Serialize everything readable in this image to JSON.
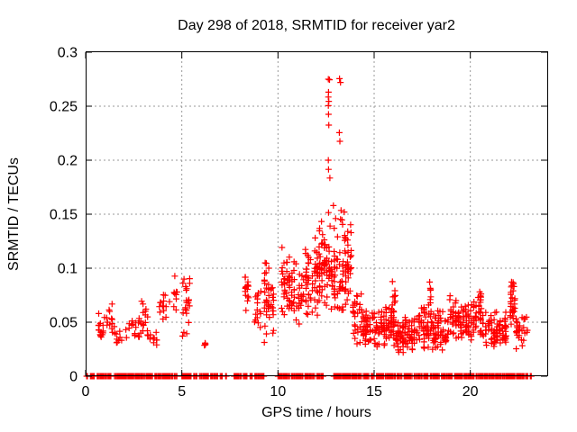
{
  "chart_data": {
    "type": "scatter",
    "title": "Day 298 of 2018, SRMTID for receiver yar2",
    "xlabel": "GPS time / hours",
    "ylabel": "SRMTID / TECUs",
    "xlim": [
      0,
      24
    ],
    "ylim": [
      0,
      0.3
    ],
    "grid": true,
    "legend": "none",
    "marker": "plus",
    "marker_color": "#ff0000",
    "marker_size": 7,
    "grid_color": "#9a9a9a",
    "axis_color": "#000000",
    "background_color": "#ffffff",
    "xticks": [
      {
        "v": 0,
        "label": "0"
      },
      {
        "v": 5,
        "label": "5"
      },
      {
        "v": 10,
        "label": "10"
      },
      {
        "v": 15,
        "label": "15"
      },
      {
        "v": 20,
        "label": "20"
      }
    ],
    "yticks": [
      {
        "v": 0,
        "label": "0"
      },
      {
        "v": 0.05,
        "label": "0.05"
      },
      {
        "v": 0.1,
        "label": "0.1"
      },
      {
        "v": 0.15,
        "label": "0.15"
      },
      {
        "v": 0.2,
        "label": "0.2"
      },
      {
        "v": 0.25,
        "label": "0.25"
      },
      {
        "v": 0.3,
        "label": "0.3"
      }
    ],
    "cluster_format": [
      "x_start_h",
      "x_end_h",
      "y_min_TECU",
      "y_max_TECU",
      "n_points",
      "n_columns"
    ],
    "clusters": [
      [
        0.62,
        1.05,
        0.03,
        0.062,
        16,
        4
      ],
      [
        1.05,
        1.55,
        0.032,
        0.072,
        14,
        4
      ],
      [
        1.55,
        1.95,
        0.028,
        0.048,
        8,
        3
      ],
      [
        2.05,
        2.65,
        0.03,
        0.056,
        12,
        4
      ],
      [
        2.7,
        3.3,
        0.03,
        0.078,
        22,
        5
      ],
      [
        3.3,
        3.75,
        0.017,
        0.048,
        10,
        3
      ],
      [
        3.8,
        4.4,
        0.042,
        0.088,
        14,
        4
      ],
      [
        4.55,
        4.9,
        0.052,
        0.096,
        9,
        3
      ],
      [
        5.0,
        5.45,
        0.026,
        0.105,
        22,
        3
      ],
      [
        6.15,
        6.35,
        0.024,
        0.034,
        4,
        2
      ],
      [
        8.25,
        8.5,
        0.052,
        0.112,
        16,
        2
      ],
      [
        8.75,
        9.15,
        0.04,
        0.08,
        15,
        3
      ],
      [
        9.25,
        9.8,
        0.03,
        0.108,
        42,
        5
      ],
      [
        10.15,
        10.65,
        0.045,
        0.128,
        40,
        4
      ],
      [
        10.65,
        11.4,
        0.038,
        0.112,
        38,
        6
      ],
      [
        11.4,
        12.1,
        0.048,
        0.135,
        55,
        6
      ],
      [
        12.1,
        13.0,
        0.055,
        0.148,
        85,
        7
      ],
      [
        13.0,
        13.85,
        0.048,
        0.15,
        65,
        6
      ],
      [
        13.85,
        14.4,
        0.028,
        0.082,
        30,
        5
      ],
      [
        14.4,
        15.2,
        0.024,
        0.062,
        55,
        7
      ],
      [
        15.2,
        16.2,
        0.022,
        0.068,
        70,
        8
      ],
      [
        15.9,
        16.15,
        0.06,
        0.088,
        8,
        2
      ],
      [
        16.2,
        17.4,
        0.02,
        0.06,
        85,
        10
      ],
      [
        17.4,
        18.0,
        0.025,
        0.075,
        45,
        5
      ],
      [
        17.85,
        18.0,
        0.06,
        0.092,
        6,
        1
      ],
      [
        18.0,
        18.9,
        0.022,
        0.062,
        60,
        7
      ],
      [
        18.9,
        19.45,
        0.028,
        0.08,
        40,
        4
      ],
      [
        19.45,
        20.1,
        0.025,
        0.068,
        45,
        5
      ],
      [
        20.1,
        20.6,
        0.03,
        0.078,
        35,
        4
      ],
      [
        20.45,
        20.6,
        0.065,
        0.09,
        5,
        1
      ],
      [
        20.6,
        21.9,
        0.024,
        0.062,
        80,
        9
      ],
      [
        22.05,
        22.35,
        0.04,
        0.086,
        22,
        3
      ],
      [
        22.1,
        22.3,
        0.072,
        0.093,
        8,
        2
      ],
      [
        22.35,
        23.0,
        0.025,
        0.058,
        30,
        5
      ]
    ],
    "spike_points": [
      [
        12.62,
        0.275
      ],
      [
        12.68,
        0.2745
      ],
      [
        12.63,
        0.263
      ],
      [
        12.62,
        0.2585
      ],
      [
        12.64,
        0.2545
      ],
      [
        12.62,
        0.2505
      ],
      [
        12.63,
        0.2425
      ],
      [
        12.64,
        0.2325
      ],
      [
        12.62,
        0.2
      ],
      [
        12.63,
        0.1915
      ],
      [
        12.7,
        0.1835
      ],
      [
        13.2,
        0.2755
      ],
      [
        13.25,
        0.272
      ],
      [
        13.19,
        0.2255
      ],
      [
        13.22,
        0.2175
      ],
      [
        12.88,
        0.158
      ],
      [
        12.63,
        0.1515
      ],
      [
        13.28,
        0.1535
      ],
      [
        13.45,
        0.152
      ],
      [
        13.0,
        0.146
      ]
    ],
    "baseline_value": 0,
    "baseline_segments": [
      [
        0.05,
        0.1
      ],
      [
        0.25,
        0.5
      ],
      [
        0.6,
        1.35
      ],
      [
        1.5,
        2.42
      ],
      [
        2.47,
        3.1
      ],
      [
        3.15,
        3.52
      ],
      [
        3.6,
        4.1
      ],
      [
        4.15,
        4.55
      ],
      [
        4.62,
        4.78
      ],
      [
        5.0,
        5.52
      ],
      [
        5.62,
        5.82
      ],
      [
        5.92,
        6.4
      ],
      [
        6.5,
        6.9
      ],
      [
        7.0,
        7.12
      ],
      [
        7.28,
        7.34
      ],
      [
        7.72,
        8.12
      ],
      [
        8.2,
        8.42
      ],
      [
        8.55,
        8.68
      ],
      [
        8.8,
        9.28
      ],
      [
        10.0,
        10.62
      ],
      [
        10.7,
        11.32
      ],
      [
        11.4,
        11.95
      ],
      [
        12.02,
        12.38
      ],
      [
        12.9,
        13.32
      ],
      [
        13.38,
        13.78
      ],
      [
        13.84,
        14.38
      ],
      [
        14.44,
        14.78
      ],
      [
        14.85,
        15.05
      ],
      [
        15.12,
        15.52
      ],
      [
        15.58,
        16.12
      ],
      [
        16.2,
        16.48
      ],
      [
        16.56,
        17.02
      ],
      [
        17.08,
        17.52
      ],
      [
        17.58,
        17.82
      ],
      [
        17.92,
        18.42
      ],
      [
        18.5,
        19.12
      ],
      [
        19.18,
        19.62
      ],
      [
        19.68,
        20.22
      ],
      [
        20.3,
        20.92
      ],
      [
        20.98,
        21.62
      ],
      [
        21.68,
        22.32
      ],
      [
        22.4,
        22.82
      ],
      [
        22.88,
        23.02
      ],
      [
        23.12,
        23.18
      ]
    ]
  }
}
